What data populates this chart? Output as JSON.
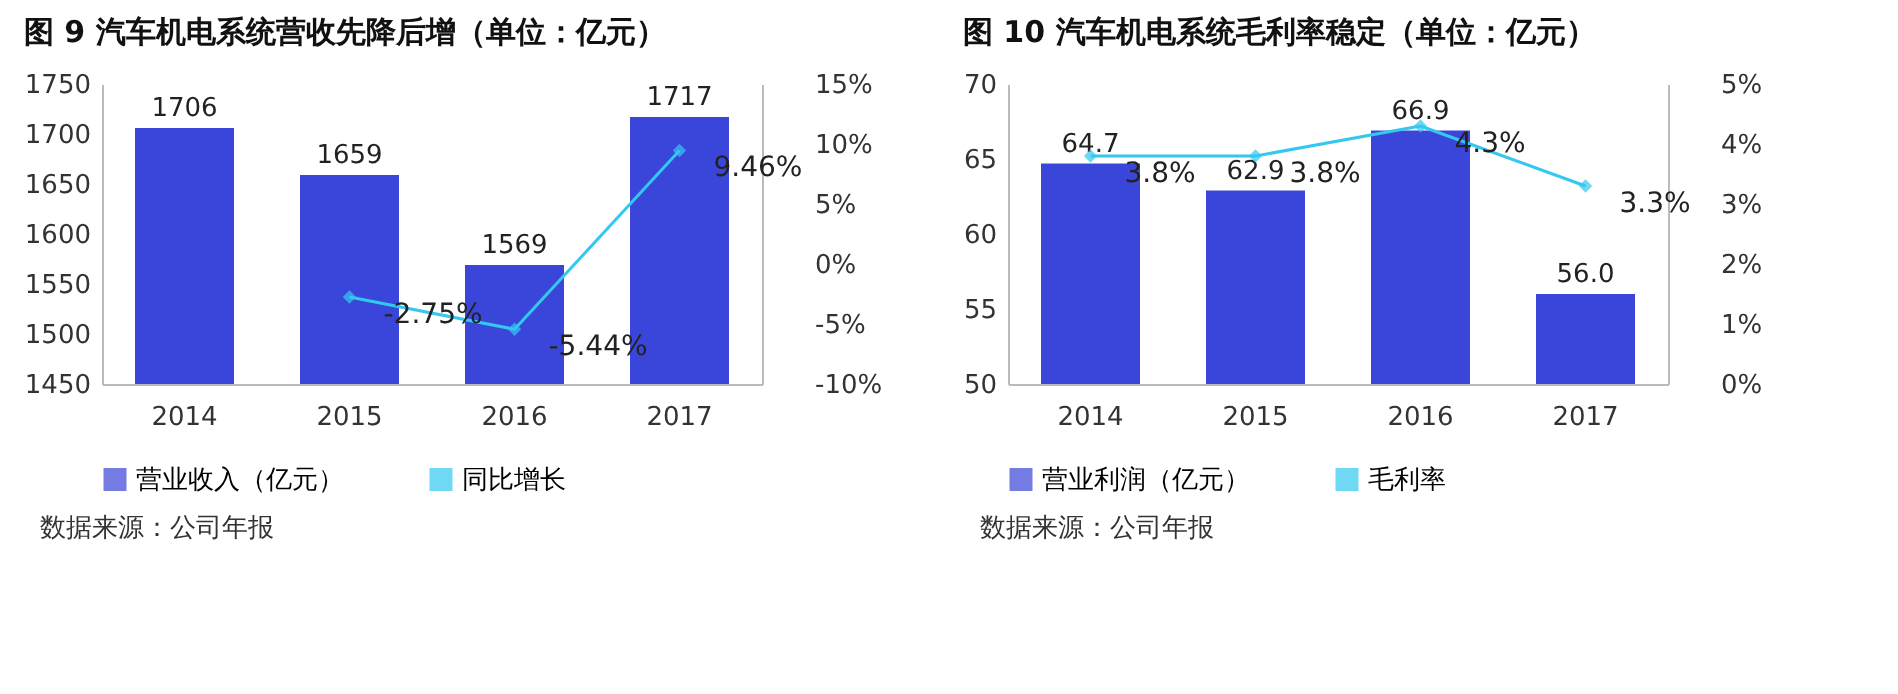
{
  "chart_data": [
    {
      "type": "bar",
      "title": "图 9  汽车机电系统营收先降后增（单位：亿元）",
      "categories": [
        "2014",
        "2015",
        "2016",
        "2017"
      ],
      "series": [
        {
          "name": "营业收入（亿元）",
          "color": "#3a46d9",
          "values": [
            1706,
            1659,
            1569,
            1717
          ],
          "value_labels": [
            "1706",
            "1659",
            "1569",
            "1717"
          ]
        },
        {
          "name": "同比增长",
          "type": "line",
          "axis": "y2",
          "color": "#33c8f0",
          "values": [
            null,
            -2.75,
            -5.44,
            9.46
          ],
          "value_labels": [
            null,
            "-2.75%",
            "-5.44%",
            "9.46%"
          ]
        }
      ],
      "ylim": [
        1450,
        1750
      ],
      "yticks": [
        1450,
        1500,
        1550,
        1600,
        1650,
        1700,
        1750
      ],
      "y2lim": [
        -10,
        15
      ],
      "y2ticks": [
        {
          "value": -10,
          "label": "-10%"
        },
        {
          "value": -5,
          "label": "-5%"
        },
        {
          "value": 0,
          "label": "0%"
        },
        {
          "value": 5,
          "label": "5%"
        },
        {
          "value": 10,
          "label": "10%"
        },
        {
          "value": 15,
          "label": "15%"
        }
      ],
      "marker": "diamond",
      "legend": "bottom",
      "annotations": [
        "数据来源：公司年报"
      ]
    },
    {
      "type": "bar",
      "title": "图 10  汽车机电系统毛利率稳定（单位：亿元）",
      "categories": [
        "2014",
        "2015",
        "2016",
        "2017"
      ],
      "series": [
        {
          "name": "营业利润（亿元）",
          "color": "#3a46d9",
          "values": [
            64.7,
            62.9,
            66.9,
            56.0
          ],
          "value_labels": [
            "64.7",
            "62.9",
            "66.9",
            "56.0"
          ]
        },
        {
          "name": "毛利率",
          "type": "line",
          "axis": "y2",
          "color": "#33c8f0",
          "values": [
            3.8,
            3.8,
            4.3,
            3.3
          ],
          "value_labels": [
            "3.8%",
            "3.8%",
            "4.3%",
            "3.3%"
          ]
        }
      ],
      "ylim": [
        50,
        70
      ],
      "yticks": [
        50,
        55,
        60,
        65,
        70
      ],
      "y2lim": [
        0,
        5
      ],
      "y2ticks": [
        {
          "value": 0,
          "label": "0%"
        },
        {
          "value": 1,
          "label": "1%"
        },
        {
          "value": 2,
          "label": "2%"
        },
        {
          "value": 3,
          "label": "3%"
        },
        {
          "value": 4,
          "label": "4%"
        },
        {
          "value": 5,
          "label": "5%"
        }
      ],
      "marker": "diamond",
      "legend": "bottom",
      "annotations": [
        "数据来源：公司年报"
      ]
    }
  ]
}
